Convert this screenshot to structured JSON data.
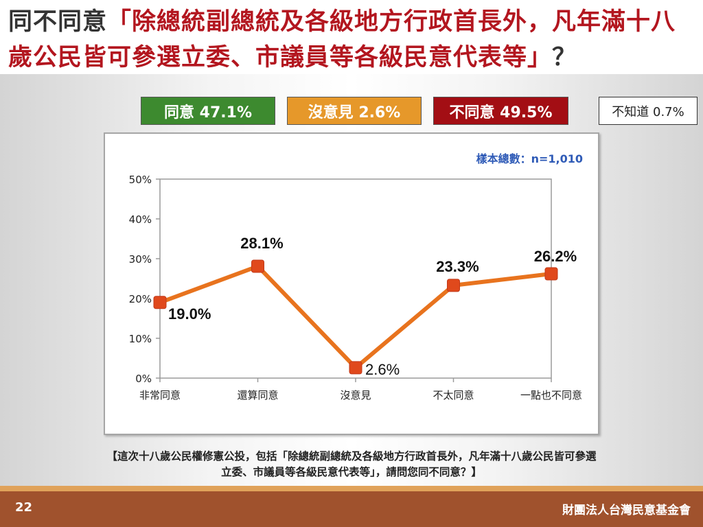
{
  "slide": {
    "title_prefix": "同不同意",
    "title_quote": "「除總統副總統及各級地方行政首長外，凡年滿十八歲公民皆可參選立委、市議員等各級民意代表等」",
    "title_suffix": "？",
    "page_number": "22",
    "organization": "財團法人台灣民意基金會",
    "footnote": "【這次十八歲公民權修憲公投，包括「除總統副總統及各級地方行政首長外，凡年滿十八歲公民皆可參選立委、市議員等各級民意代表等」，請問您同不同意？】"
  },
  "summary": {
    "agree": "同意 47.1%",
    "neutral": "沒意見 2.6%",
    "disagree": "不同意 49.5%",
    "unknown": "不知道 0.7%"
  },
  "colors": {
    "agree": "#3d8a2f",
    "neutral": "#e6982a",
    "disagree": "#a30e14",
    "line": "#e8731e",
    "marker": "#e0491c",
    "title_accent": "#b3161f",
    "footer": "#a0522d"
  },
  "chart_data": {
    "type": "line",
    "sample_note": "樣本總數：n=1,010",
    "categories": [
      "非常同意",
      "還算同意",
      "沒意見",
      "不太同意",
      "一點也不同意"
    ],
    "values": [
      19.0,
      28.1,
      2.6,
      23.3,
      26.2
    ],
    "data_labels": [
      "19.0%",
      "28.1%",
      "2.6%",
      "23.3%",
      "26.2%"
    ],
    "y_ticks": [
      "0%",
      "10%",
      "20%",
      "30%",
      "40%",
      "50%"
    ],
    "ylim": [
      0,
      50
    ],
    "grid": false,
    "xlabel": "",
    "ylabel": ""
  }
}
